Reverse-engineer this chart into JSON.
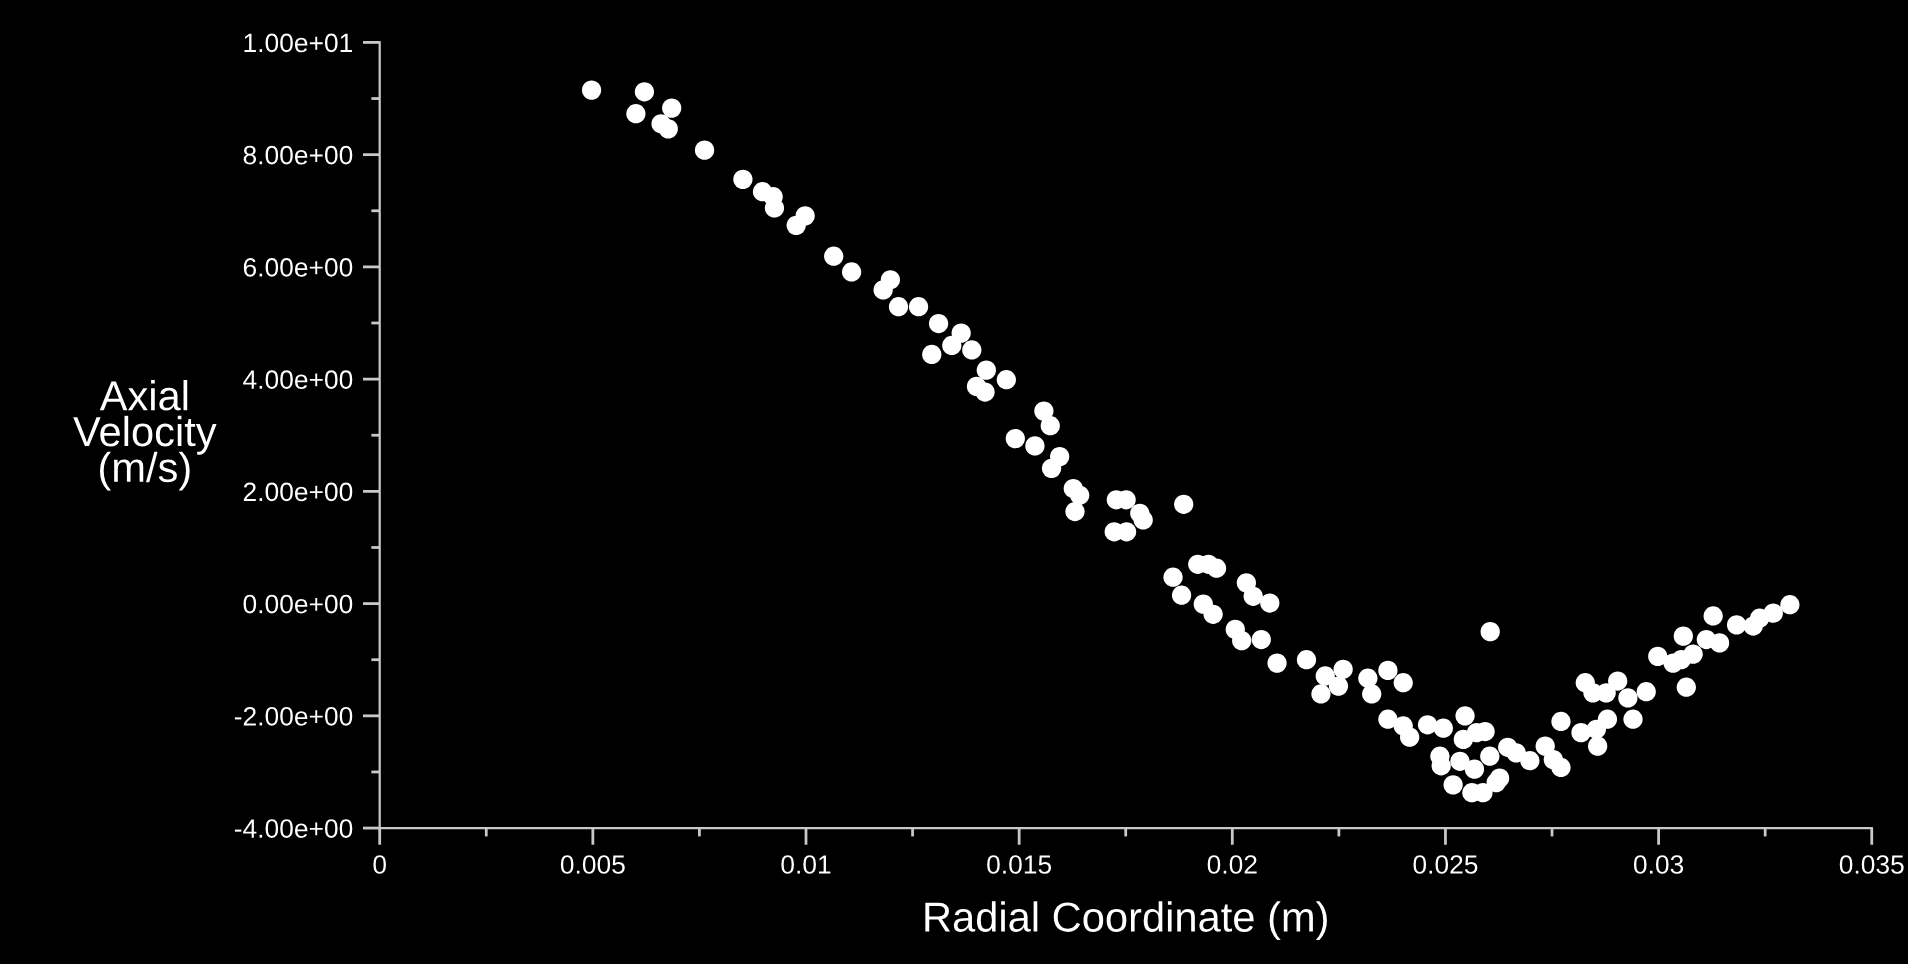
{
  "chart_data": {
    "type": "scatter",
    "xlabel": "Radial Coordinate (m)",
    "ylabel": "Axial\nVelocity\n(m/s)",
    "x": [
      0.00497,
      0.00621,
      0.00601,
      0.00685,
      0.0066,
      0.00677,
      0.00762,
      0.00852,
      0.00898,
      0.00923,
      0.00926,
      0.00998,
      0.00977,
      0.01065,
      0.01107,
      0.01198,
      0.01181,
      0.01217,
      0.01264,
      0.01311,
      0.01364,
      0.01342,
      0.01389,
      0.01295,
      0.01423,
      0.0147,
      0.014,
      0.0142,
      0.01558,
      0.01573,
      0.01491,
      0.01537,
      0.01595,
      0.01576,
      0.01627,
      0.01642,
      0.01728,
      0.01751,
      0.01631,
      0.01783,
      0.01791,
      0.01723,
      0.01752,
      0.01886,
      0.01861,
      0.01881,
      0.01919,
      0.01944,
      0.01963,
      0.01932,
      0.01955,
      0.02033,
      0.02049,
      0.02088,
      0.02007,
      0.02022,
      0.02068,
      0.02105,
      0.02174,
      0.02218,
      0.0226,
      0.02249,
      0.02208,
      0.02318,
      0.02365,
      0.02327,
      0.02365,
      0.02401,
      0.02401,
      0.02416,
      0.02458,
      0.02495,
      0.02546,
      0.02605,
      0.02487,
      0.0249,
      0.02518,
      0.02534,
      0.02542,
      0.02568,
      0.02573,
      0.02593,
      0.02604,
      0.02562,
      0.02588,
      0.02619,
      0.02627,
      0.02646,
      0.02666,
      0.02698,
      0.02734,
      0.02753,
      0.02771,
      0.02771,
      0.02818,
      0.02828,
      0.02846,
      0.02857,
      0.02854,
      0.0288,
      0.02877,
      0.02904,
      0.02928,
      0.0294,
      0.02971,
      0.02998,
      0.03034,
      0.03058,
      0.03053,
      0.03081,
      0.03065,
      0.03128,
      0.03112,
      0.03143,
      0.03183,
      0.03222,
      0.03237,
      0.03269,
      0.03308
    ],
    "series": [
      {
        "color": "#ffffff",
        "values": [
          9.15,
          9.12,
          8.73,
          8.83,
          8.55,
          8.46,
          8.08,
          7.56,
          7.34,
          7.25,
          7.05,
          6.91,
          6.74,
          6.19,
          5.91,
          5.77,
          5.59,
          5.29,
          5.29,
          4.99,
          4.82,
          4.6,
          4.52,
          4.44,
          4.16,
          3.99,
          3.87,
          3.77,
          3.43,
          3.17,
          2.94,
          2.81,
          2.62,
          2.41,
          2.05,
          1.93,
          1.85,
          1.85,
          1.64,
          1.61,
          1.49,
          1.28,
          1.28,
          1.77,
          0.47,
          0.15,
          0.7,
          0.7,
          0.63,
          -0.01,
          -0.19,
          0.37,
          0.13,
          0.01,
          -0.46,
          -0.66,
          -0.64,
          -1.06,
          -1.0,
          -1.29,
          -1.17,
          -1.47,
          -1.61,
          -1.33,
          -1.19,
          -1.61,
          -2.06,
          -1.41,
          -2.18,
          -2.38,
          -2.16,
          -2.22,
          -2.0,
          -0.5,
          -2.72,
          -2.89,
          -3.23,
          -2.81,
          -2.42,
          -2.95,
          -2.3,
          -2.28,
          -2.72,
          -3.37,
          -3.37,
          -3.19,
          -3.11,
          -2.56,
          -2.66,
          -2.8,
          -2.54,
          -2.78,
          -2.92,
          -2.1,
          -2.3,
          -1.41,
          -1.59,
          -2.54,
          -2.24,
          -2.06,
          -1.59,
          -1.38,
          -1.68,
          -2.06,
          -1.57,
          -0.94,
          -1.06,
          -0.58,
          -1.0,
          -0.9,
          -1.49,
          -0.22,
          -0.64,
          -0.7,
          -0.38,
          -0.4,
          -0.26,
          -0.17,
          -0.02
        ]
      }
    ],
    "marker": "circle",
    "xlim": [
      0,
      0.035
    ],
    "ylim": [
      -4,
      10
    ],
    "xticks": [
      0,
      {
        "value": 0.0025,
        "label": null
      },
      0.005,
      {
        "value": 0.0075,
        "label": null
      },
      0.01,
      {
        "value": 0.0125,
        "label": null
      },
      0.015,
      {
        "value": 0.0175,
        "label": null
      },
      0.02,
      {
        "value": 0.0225,
        "label": null
      },
      0.025,
      {
        "value": 0.0275,
        "label": null
      },
      0.03,
      {
        "value": 0.0325,
        "label": null
      },
      0.035
    ],
    "yticks": [
      {
        "value": -4,
        "label": "-4.00e+00"
      },
      {
        "value": -3,
        "label": null
      },
      {
        "value": -2,
        "label": "-2.00e+00"
      },
      {
        "value": -1,
        "label": null
      },
      {
        "value": 0,
        "label": "0.00e+00"
      },
      {
        "value": 1,
        "label": null
      },
      {
        "value": 2,
        "label": "2.00e+00"
      },
      {
        "value": 3,
        "label": null
      },
      {
        "value": 4,
        "label": "4.00e+00"
      },
      {
        "value": 5,
        "label": null
      },
      {
        "value": 6,
        "label": "6.00e+00"
      },
      {
        "value": 7,
        "label": null
      },
      {
        "value": 8,
        "label": "8.00e+00"
      },
      {
        "value": 9,
        "label": null
      },
      {
        "value": 10,
        "label": "1.00e+01"
      }
    ],
    "grid": false,
    "legend": false
  }
}
